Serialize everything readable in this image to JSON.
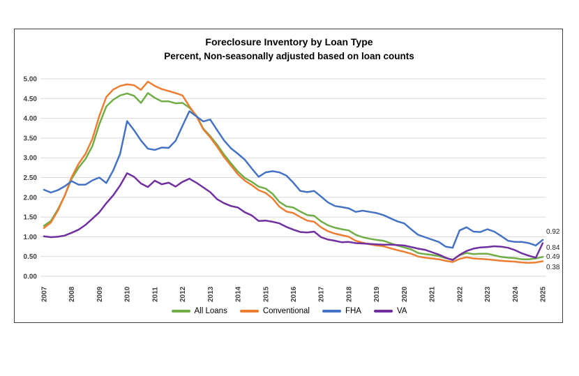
{
  "title": "Foreclosure Inventory by Loan Type",
  "subtitle": "Percent, Non-seasonally adjusted based on loan counts",
  "end_labels": [
    "0.92",
    "0.84",
    "0.49",
    "0.38"
  ],
  "chart_data": {
    "type": "line",
    "x_unit": "quarterly",
    "x_start": "2007Q1",
    "x_end": "2025Q1",
    "x_tick_labels": [
      "2007",
      "2008",
      "2009",
      "2010",
      "2011",
      "2012",
      "2013",
      "2014",
      "2015",
      "2016",
      "2017",
      "2018",
      "2019",
      "2020",
      "2021",
      "2022",
      "2023",
      "2024",
      "2025"
    ],
    "y_tick_labels": [
      "0.00",
      "0.50",
      "1.00",
      "1.50",
      "2.00",
      "2.50",
      "3.00",
      "3.50",
      "4.00",
      "4.50",
      "5.00"
    ],
    "ylim": [
      0,
      5
    ],
    "y_step": 0.5,
    "grid": "horizontal",
    "gridline_color": "#d9d9d9",
    "legend_position": "bottom",
    "series": [
      {
        "name": "All Loans",
        "color": "#70AD47",
        "end_label": "0.49",
        "values": [
          1.28,
          1.4,
          1.69,
          2.04,
          2.47,
          2.75,
          2.97,
          3.3,
          3.85,
          4.3,
          4.47,
          4.58,
          4.63,
          4.57,
          4.39,
          4.64,
          4.52,
          4.43,
          4.43,
          4.38,
          4.39,
          4.27,
          4.07,
          3.74,
          3.55,
          3.33,
          3.08,
          2.86,
          2.65,
          2.49,
          2.39,
          2.27,
          2.22,
          2.09,
          1.88,
          1.77,
          1.74,
          1.64,
          1.55,
          1.53,
          1.39,
          1.29,
          1.23,
          1.19,
          1.16,
          1.05,
          0.99,
          0.95,
          0.92,
          0.9,
          0.84,
          0.78,
          0.73,
          0.68,
          0.59,
          0.56,
          0.54,
          0.51,
          0.46,
          0.42,
          0.53,
          0.59,
          0.56,
          0.57,
          0.57,
          0.53,
          0.49,
          0.47,
          0.46,
          0.43,
          0.43,
          0.45,
          0.49
        ]
      },
      {
        "name": "Conventional",
        "color": "#ED7D31",
        "end_label": "0.38",
        "values": [
          1.22,
          1.36,
          1.66,
          2.04,
          2.51,
          2.85,
          3.1,
          3.48,
          4.06,
          4.54,
          4.73,
          4.82,
          4.86,
          4.84,
          4.72,
          4.93,
          4.82,
          4.74,
          4.69,
          4.64,
          4.58,
          4.3,
          4.06,
          3.72,
          3.52,
          3.28,
          3.02,
          2.8,
          2.58,
          2.42,
          2.31,
          2.18,
          2.11,
          1.97,
          1.76,
          1.64,
          1.6,
          1.5,
          1.41,
          1.38,
          1.24,
          1.14,
          1.08,
          1.04,
          1.0,
          0.9,
          0.85,
          0.81,
          0.78,
          0.76,
          0.71,
          0.66,
          0.62,
          0.57,
          0.5,
          0.47,
          0.45,
          0.43,
          0.39,
          0.36,
          0.44,
          0.48,
          0.45,
          0.44,
          0.43,
          0.41,
          0.39,
          0.38,
          0.37,
          0.35,
          0.34,
          0.35,
          0.38
        ]
      },
      {
        "name": "FHA",
        "color": "#4472C4",
        "end_label": "0.92",
        "values": [
          2.19,
          2.12,
          2.18,
          2.28,
          2.41,
          2.32,
          2.32,
          2.43,
          2.5,
          2.36,
          2.68,
          3.1,
          3.93,
          3.7,
          3.44,
          3.23,
          3.2,
          3.26,
          3.25,
          3.43,
          3.81,
          4.18,
          4.05,
          3.92,
          3.97,
          3.7,
          3.44,
          3.24,
          3.1,
          2.95,
          2.73,
          2.52,
          2.63,
          2.66,
          2.63,
          2.55,
          2.37,
          2.16,
          2.13,
          2.16,
          2.02,
          1.87,
          1.78,
          1.75,
          1.72,
          1.63,
          1.66,
          1.63,
          1.6,
          1.55,
          1.47,
          1.39,
          1.34,
          1.19,
          1.05,
          0.99,
          0.93,
          0.87,
          0.75,
          0.72,
          1.16,
          1.24,
          1.13,
          1.12,
          1.19,
          1.13,
          1.02,
          0.9,
          0.87,
          0.87,
          0.84,
          0.78,
          0.92
        ]
      },
      {
        "name": "VA",
        "color": "#7030A0",
        "end_label": "0.84",
        "values": [
          1.01,
          0.99,
          1.0,
          1.03,
          1.1,
          1.18,
          1.3,
          1.46,
          1.62,
          1.85,
          2.05,
          2.3,
          2.61,
          2.52,
          2.35,
          2.26,
          2.42,
          2.33,
          2.37,
          2.27,
          2.39,
          2.47,
          2.37,
          2.25,
          2.13,
          1.95,
          1.85,
          1.78,
          1.74,
          1.62,
          1.54,
          1.4,
          1.41,
          1.38,
          1.34,
          1.25,
          1.18,
          1.12,
          1.11,
          1.13,
          0.99,
          0.93,
          0.9,
          0.86,
          0.87,
          0.84,
          0.83,
          0.82,
          0.81,
          0.8,
          0.8,
          0.79,
          0.78,
          0.74,
          0.7,
          0.67,
          0.61,
          0.55,
          0.47,
          0.41,
          0.54,
          0.64,
          0.7,
          0.73,
          0.74,
          0.76,
          0.75,
          0.72,
          0.66,
          0.58,
          0.52,
          0.47,
          0.84
        ]
      }
    ]
  }
}
